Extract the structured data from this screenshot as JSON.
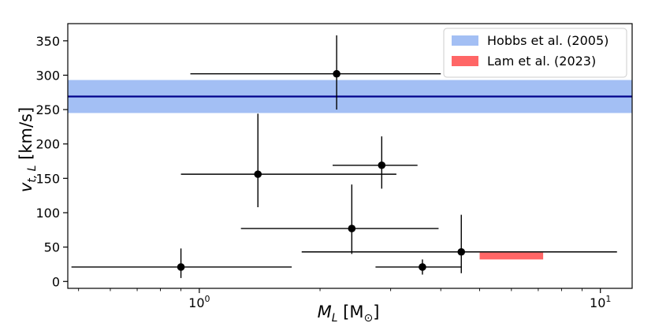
{
  "chart_data": {
    "type": "scatter",
    "title": "",
    "xlabel": {
      "main": "M",
      "sub": "L",
      "unit_open": " [M",
      "unit_sub": "⊙",
      "unit_close": "]"
    },
    "ylabel": {
      "main": "v",
      "sub": "t, L",
      "unit": " [km/s]"
    },
    "x_scale": "log",
    "xlim": [
      0.47,
      12
    ],
    "ylim": [
      -10,
      375
    ],
    "grid": false,
    "legend_position": "top-right",
    "x_ticks": [
      {
        "value": 1,
        "base": "10",
        "exp": "0"
      },
      {
        "value": 10,
        "base": "10",
        "exp": "1"
      }
    ],
    "x_minor_ticks": [
      0.5,
      0.6,
      0.7,
      0.8,
      0.9,
      2,
      3,
      4,
      5,
      6,
      7,
      8,
      9
    ],
    "y_ticks": [
      0,
      50,
      100,
      150,
      200,
      250,
      300,
      350
    ],
    "y_tick_labels": [
      "0",
      "50",
      "100",
      "150",
      "200",
      "250",
      "300",
      "350"
    ],
    "bands": [
      {
        "name": "Hobbs et al. (2005)",
        "color": "#a3bff4",
        "line_color": "#00008b",
        "y_low": 245,
        "y_high": 293,
        "y_center": 269
      }
    ],
    "boxes": [
      {
        "name": "Lam et al. (2023)",
        "color": "#ff6666",
        "x_low": 5.0,
        "x_high": 7.2,
        "y_low": 32,
        "y_high": 42
      }
    ],
    "points": [
      {
        "x": 0.9,
        "y": 21,
        "x_low": 0.48,
        "x_high": 1.7,
        "y_low": 5,
        "y_high": 48
      },
      {
        "x": 2.2,
        "y": 302,
        "x_low": 0.95,
        "x_high": 4.0,
        "y_low": 250,
        "y_high": 358
      },
      {
        "x": 1.4,
        "y": 156,
        "x_low": 0.9,
        "x_high": 3.1,
        "y_low": 108,
        "y_high": 244
      },
      {
        "x": 2.85,
        "y": 169,
        "x_low": 2.15,
        "x_high": 3.5,
        "y_low": 135,
        "y_high": 211
      },
      {
        "x": 2.4,
        "y": 77,
        "x_low": 1.27,
        "x_high": 3.95,
        "y_low": 40,
        "y_high": 141
      },
      {
        "x": 3.6,
        "y": 21,
        "x_low": 2.75,
        "x_high": 4.5,
        "y_low": 10,
        "y_high": 32
      },
      {
        "x": 4.5,
        "y": 43,
        "x_low": 1.8,
        "x_high": 11.0,
        "y_low": 12,
        "y_high": 97
      }
    ]
  }
}
